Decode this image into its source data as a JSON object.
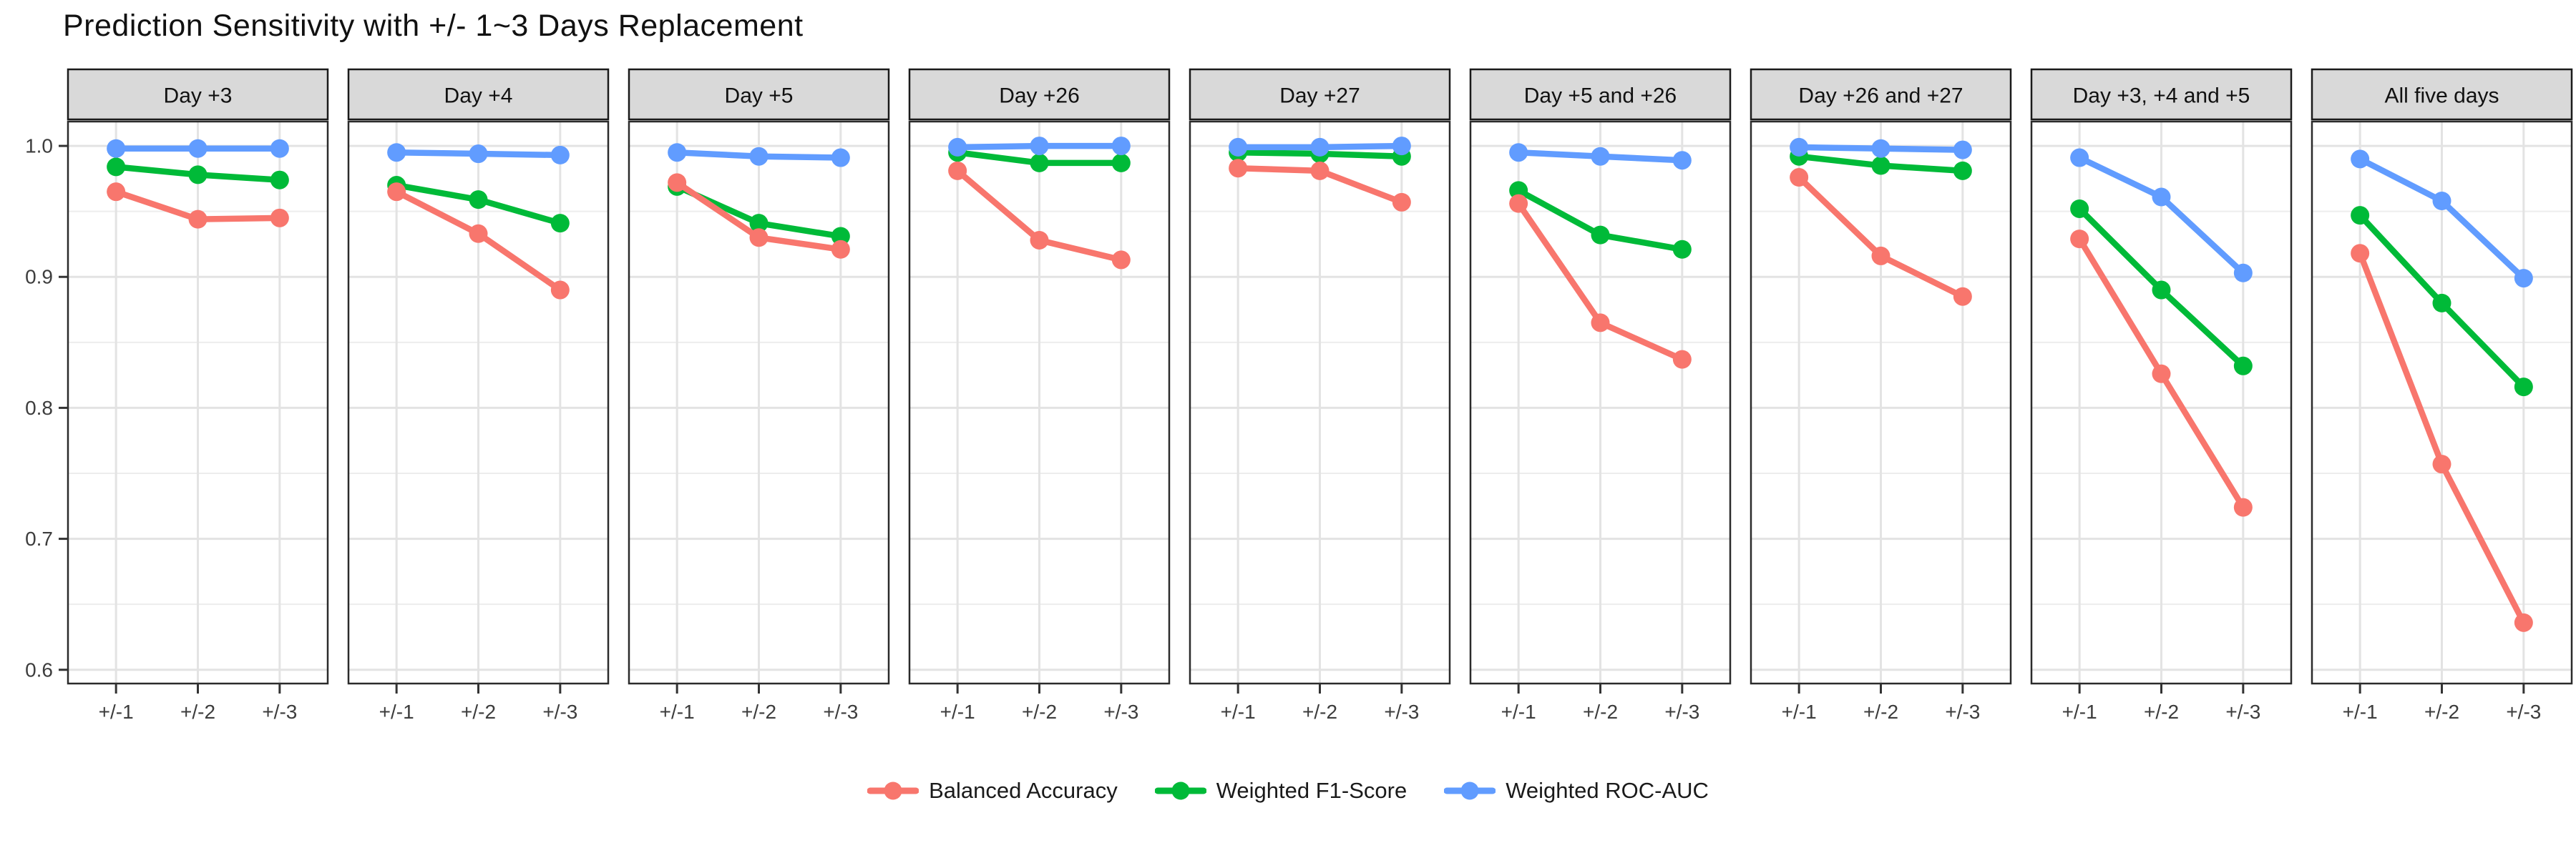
{
  "title": "Prediction Sensitivity with +/- 1~3 Days Replacement",
  "chart_data": {
    "type": "line",
    "faceted": true,
    "categories": [
      "+/-1",
      "+/-2",
      "+/-3"
    ],
    "y_ticks": [
      "1.0",
      "0.9",
      "0.8",
      "0.7",
      "0.6"
    ],
    "y_tick_values": [
      1.0,
      0.9,
      0.8,
      0.7,
      0.6
    ],
    "y_minor_values": [
      0.95,
      0.85,
      0.75,
      0.65
    ],
    "ylim": [
      0.5895,
      1.0186
    ],
    "grid": true,
    "legend_position": "bottom",
    "series_names": [
      "Balanced Accuracy",
      "Weighted F1-Score",
      "Weighted ROC-AUC"
    ],
    "legend": [
      {
        "name": "Balanced Accuracy",
        "color": "#F8766D"
      },
      {
        "name": "Weighted F1-Score",
        "color": "#00BA38"
      },
      {
        "name": "Weighted ROC-AUC",
        "color": "#619CFF"
      }
    ],
    "facets": [
      {
        "label": "Day +3",
        "series": [
          [
            0.965,
            0.944,
            0.945
          ],
          [
            0.984,
            0.978,
            0.974
          ],
          [
            0.998,
            0.998,
            0.998
          ]
        ]
      },
      {
        "label": "Day +4",
        "series": [
          [
            0.965,
            0.933,
            0.89
          ],
          [
            0.97,
            0.959,
            0.941
          ],
          [
            0.995,
            0.994,
            0.993
          ]
        ]
      },
      {
        "label": "Day +5",
        "series": [
          [
            0.972,
            0.93,
            0.921
          ],
          [
            0.969,
            0.941,
            0.931
          ],
          [
            0.995,
            0.992,
            0.991
          ]
        ]
      },
      {
        "label": "Day +26",
        "series": [
          [
            0.981,
            0.928,
            0.913
          ],
          [
            0.995,
            0.987,
            0.987
          ],
          [
            0.999,
            1.0,
            1.0
          ]
        ]
      },
      {
        "label": "Day +27",
        "series": [
          [
            0.983,
            0.981,
            0.957
          ],
          [
            0.995,
            0.994,
            0.992
          ],
          [
            0.999,
            0.999,
            1.0
          ]
        ]
      },
      {
        "label": "Day +5 and +26",
        "series": [
          [
            0.956,
            0.865,
            0.837
          ],
          [
            0.966,
            0.932,
            0.921
          ],
          [
            0.995,
            0.992,
            0.989
          ]
        ]
      },
      {
        "label": "Day +26 and +27",
        "series": [
          [
            0.976,
            0.916,
            0.885
          ],
          [
            0.992,
            0.985,
            0.981
          ],
          [
            0.999,
            0.998,
            0.997
          ]
        ]
      },
      {
        "label": "Day +3, +4 and +5",
        "series": [
          [
            0.929,
            0.826,
            0.724
          ],
          [
            0.952,
            0.89,
            0.832
          ],
          [
            0.991,
            0.961,
            0.903
          ]
        ]
      },
      {
        "label": "All five days",
        "series": [
          [
            0.918,
            0.757,
            0.636
          ],
          [
            0.947,
            0.88,
            0.816
          ],
          [
            0.99,
            0.958,
            0.899
          ]
        ]
      }
    ],
    "colors": {
      "strip_fill": "#D9D9D9",
      "strip_border": "#1a1a1a",
      "panel_border": "#2b2b2b",
      "panel_fill": "#ffffff",
      "grid_major": "#E3E3E3",
      "grid_minor": "#EDEDED",
      "tick_mark": "#333333",
      "axis_text": "#3d3d3d",
      "strip_text": "#111111"
    }
  }
}
